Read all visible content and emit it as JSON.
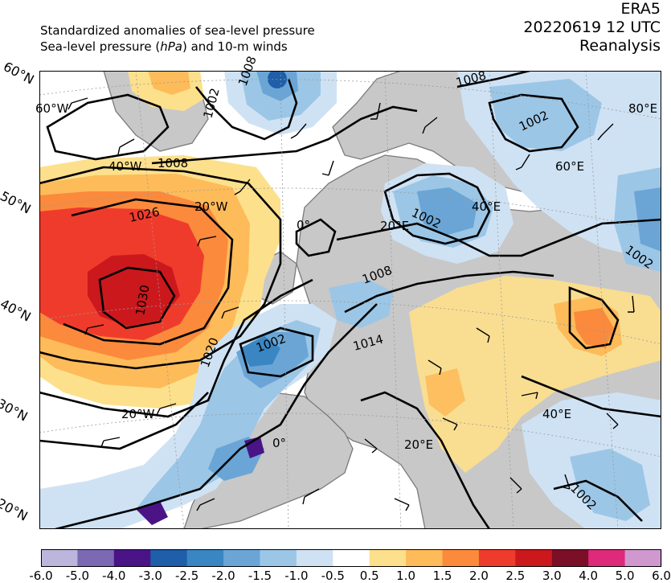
{
  "header": {
    "title_line1": "Standardized anomalies of sea-level pressure",
    "title_line2_pre": "Sea-level pressure (",
    "title_line2_unit": "hPa",
    "title_line2_post": ") and 10-m winds",
    "dataset": "ERA5",
    "datetime": "20220619 12 UTC",
    "product": "Reanalysis"
  },
  "map": {
    "lat_labels": [
      "60°N",
      "50°N",
      "40°N",
      "30°N",
      "20°N"
    ],
    "lon_labels": [
      "60°W",
      "40°W",
      "20°W",
      "0°",
      "20°E",
      "40°E",
      "60°E",
      "80°E",
      "20°W",
      "0°",
      "20°E",
      "40°E"
    ],
    "isobar_labels": [
      "1008",
      "1026",
      "1030",
      "1020",
      "1002",
      "1008",
      "1002",
      "1008",
      "1014",
      "1002",
      "1002",
      "1002",
      "1008",
      "1002"
    ],
    "colors": {
      "ocean_neutral": "#ffffff",
      "land_gray": "#c8c8c8",
      "coast": "#7a7a7a",
      "isobar": "#000000"
    }
  },
  "colorbar": {
    "ticks": [
      "-6.0",
      "-5.0",
      "-4.0",
      "-3.0",
      "-2.5",
      "-2.0",
      "-1.5",
      "-1.0",
      "-0.5",
      "0.5",
      "1.0",
      "1.5",
      "2.0",
      "2.5",
      "3.0",
      "4.0",
      "5.0",
      "6.0"
    ],
    "colors": [
      "#bcb6dc",
      "#7b69b3",
      "#4a1486",
      "#1f5ea8",
      "#3a86c2",
      "#6aa5d6",
      "#9cc6e6",
      "#cfe2f4",
      "#ffffff",
      "#fde08c",
      "#fdbb5a",
      "#fb8a3c",
      "#ef3b2c",
      "#cb181d",
      "#7b0f28",
      "#dd2a7b",
      "#cf98cf"
    ]
  }
}
